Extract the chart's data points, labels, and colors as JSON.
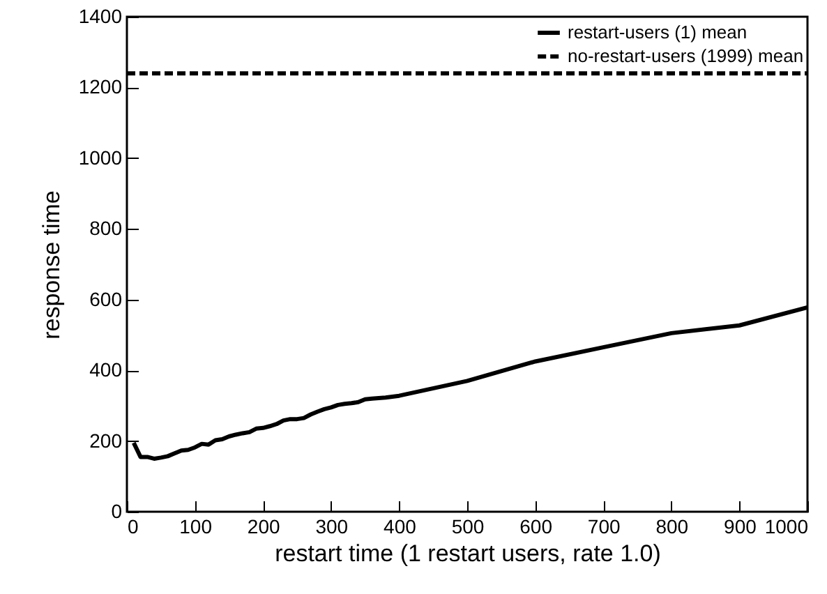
{
  "chart_data": {
    "type": "line",
    "xlabel": "restart time (1 restart users, rate 1.0)",
    "ylabel": "response time",
    "x": [
      10,
      20,
      30,
      40,
      50,
      60,
      70,
      80,
      90,
      100,
      110,
      120,
      130,
      140,
      150,
      160,
      170,
      180,
      190,
      200,
      210,
      220,
      230,
      240,
      250,
      260,
      270,
      280,
      290,
      300,
      310,
      320,
      330,
      340,
      350,
      360,
      380,
      400,
      500,
      600,
      700,
      800,
      900,
      1000
    ],
    "series": [
      {
        "name": "restart-users (1) mean",
        "color": "#000000",
        "line_style": "solid",
        "values": [
          195,
          155,
          155,
          150,
          153,
          157,
          165,
          173,
          175,
          182,
          192,
          190,
          202,
          205,
          213,
          218,
          222,
          225,
          235,
          237,
          242,
          248,
          258,
          262,
          262,
          265,
          275,
          283,
          290,
          295,
          302,
          305,
          307,
          310,
          318,
          320,
          323,
          328,
          370,
          425,
          465,
          505,
          527,
          578
        ]
      },
      {
        "name": "no-restart-users (1999) mean",
        "color": "#000000",
        "line_style": "dashed",
        "x": [
          0,
          1000
        ],
        "values": [
          1240,
          1240
        ]
      }
    ],
    "xlim": [
      0,
      1000
    ],
    "xticks": [
      0,
      100,
      200,
      300,
      400,
      500,
      600,
      700,
      800,
      900,
      {
        "value": 1000,
        "label": "1000"
      }
    ],
    "ylim": [
      0,
      1400
    ],
    "yticks": [
      0,
      200,
      400,
      600,
      800,
      {
        "value": 1000,
        "label": "1000"
      },
      {
        "value": 1200,
        "label": "1200"
      },
      {
        "value": 1400,
        "label": "1400"
      }
    ],
    "legend": "top right",
    "grid": false
  }
}
